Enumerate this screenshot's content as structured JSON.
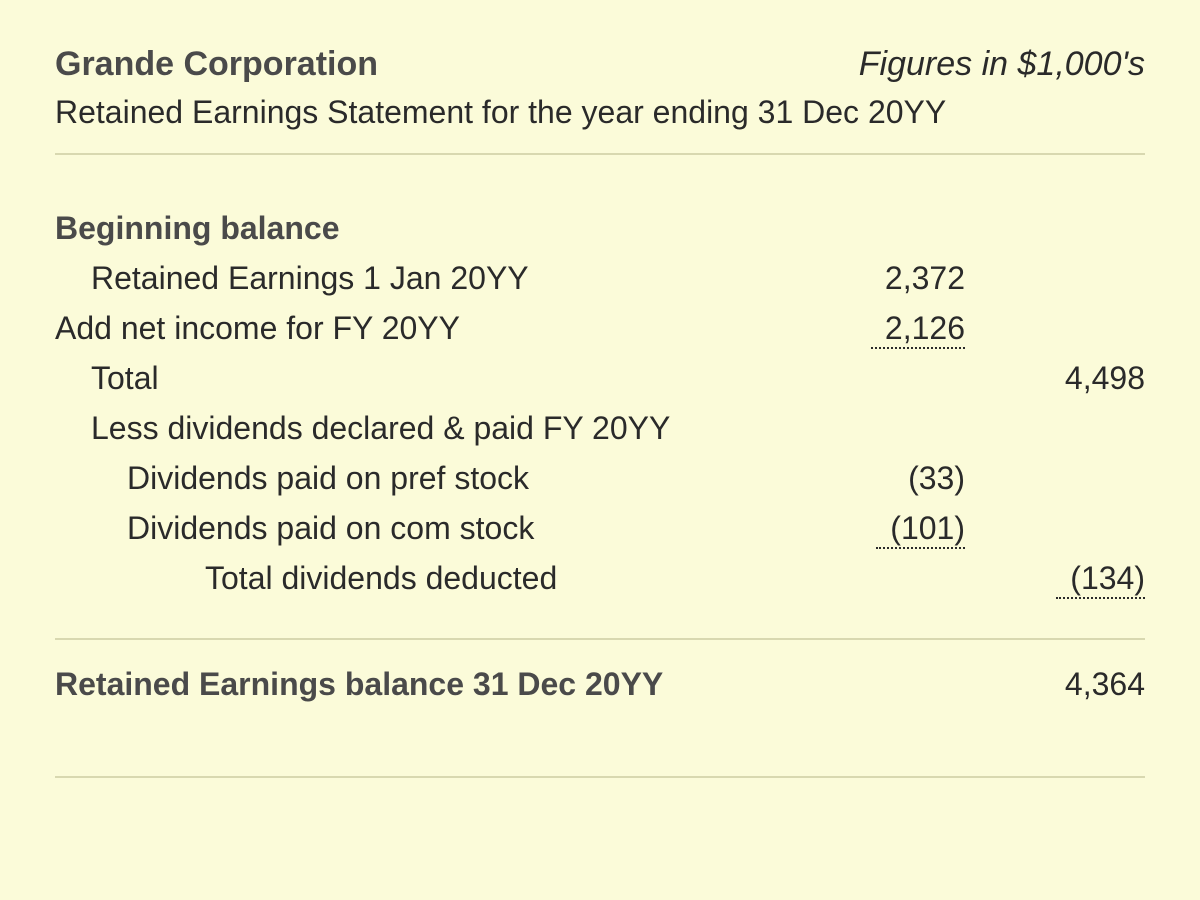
{
  "header": {
    "company_name": "Grande Corporation",
    "figures_note": "Figures in $1,000's",
    "subtitle": "Retained Earnings Statement for the year ending 31 Dec 20YY"
  },
  "body": {
    "beginning_balance_label": "Beginning balance",
    "retained_earnings_start_label": "Retained Earnings 1 Jan 20YY",
    "retained_earnings_start_value": "2,372",
    "add_net_income_label": "Add net income for FY 20YY",
    "add_net_income_value": "2,126",
    "total_label": "Total",
    "total_value": "4,498",
    "less_dividends_label": "Less dividends  declared & paid FY 20YY",
    "div_pref_label": "Dividends paid on pref stock",
    "div_pref_value": "(33)",
    "div_com_label": "Dividends paid on com stock",
    "div_com_value": "(101)",
    "total_div_label": "Total dividends deducted",
    "total_div_value": "(134)"
  },
  "footer": {
    "ending_balance_label": "Retained Earnings balance 31 Dec 20YY",
    "ending_balance_value": "4,364"
  },
  "style": {
    "background_color": "#fbfbd9",
    "text_color": "#2a2a2a",
    "bold_text_color": "#4a4a4a",
    "divider_color": "#d8d8b0",
    "font_family": "Arial, Helvetica, sans-serif",
    "company_fontsize": 34,
    "subtitle_fontsize": 32,
    "body_fontsize": 32
  }
}
